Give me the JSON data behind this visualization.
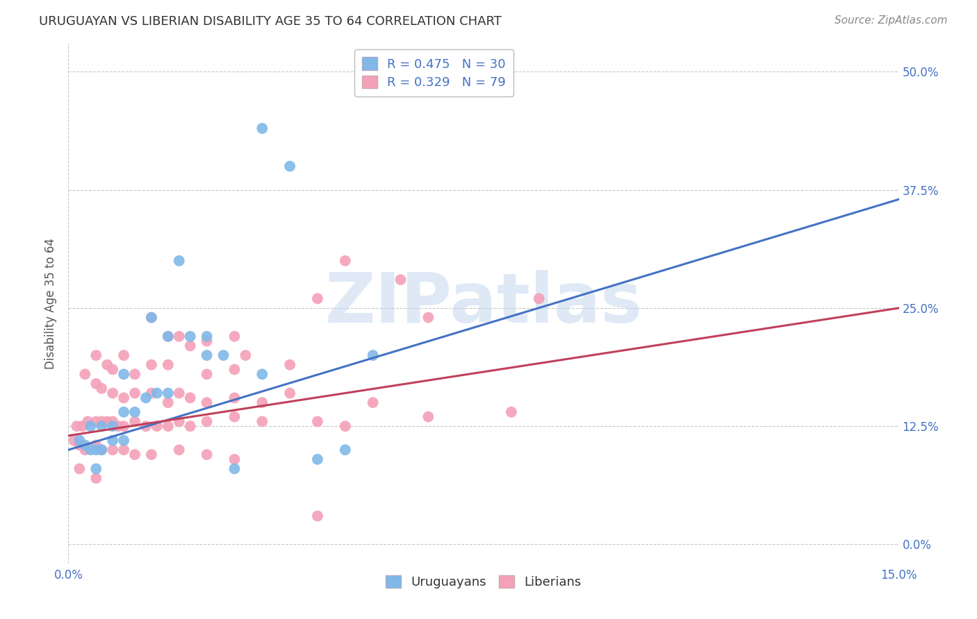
{
  "title": "URUGUAYAN VS LIBERIAN DISABILITY AGE 35 TO 64 CORRELATION CHART",
  "source": "Source: ZipAtlas.com",
  "ylabel": "Disability Age 35 to 64",
  "xlim": [
    0.0,
    15.0
  ],
  "ylim": [
    -2.0,
    53.0
  ],
  "ytick_vals": [
    0.0,
    12.5,
    25.0,
    37.5,
    50.0
  ],
  "ytick_labels": [
    "0.0%",
    "12.5%",
    "25.0%",
    "37.5%",
    "50.0%"
  ],
  "xtick_vals": [
    0.0,
    15.0
  ],
  "xtick_labels": [
    "0.0%",
    "15.0%"
  ],
  "uruguayan_color": "#80b8e8",
  "liberian_color": "#f4a0b8",
  "uruguayan_line_color": "#4472c4",
  "liberian_line_color": "#c0405a",
  "R_uruguayan": 0.475,
  "N_uruguayan": 30,
  "R_liberian": 0.329,
  "N_liberian": 79,
  "background_color": "#ffffff",
  "grid_color": "#c8c8c8",
  "uru_line_x0": 0.0,
  "uru_line_y0": 10.0,
  "uru_line_x1": 15.0,
  "uru_line_y1": 36.5,
  "lib_line_x0": 0.0,
  "lib_line_y0": 11.5,
  "lib_line_x1": 15.0,
  "lib_line_y1": 25.0,
  "watermark_text": "ZIPatlas",
  "watermark_color": "#c5d8f0",
  "title_fontsize": 13,
  "source_fontsize": 11,
  "tick_fontsize": 12,
  "legend_fontsize": 13
}
